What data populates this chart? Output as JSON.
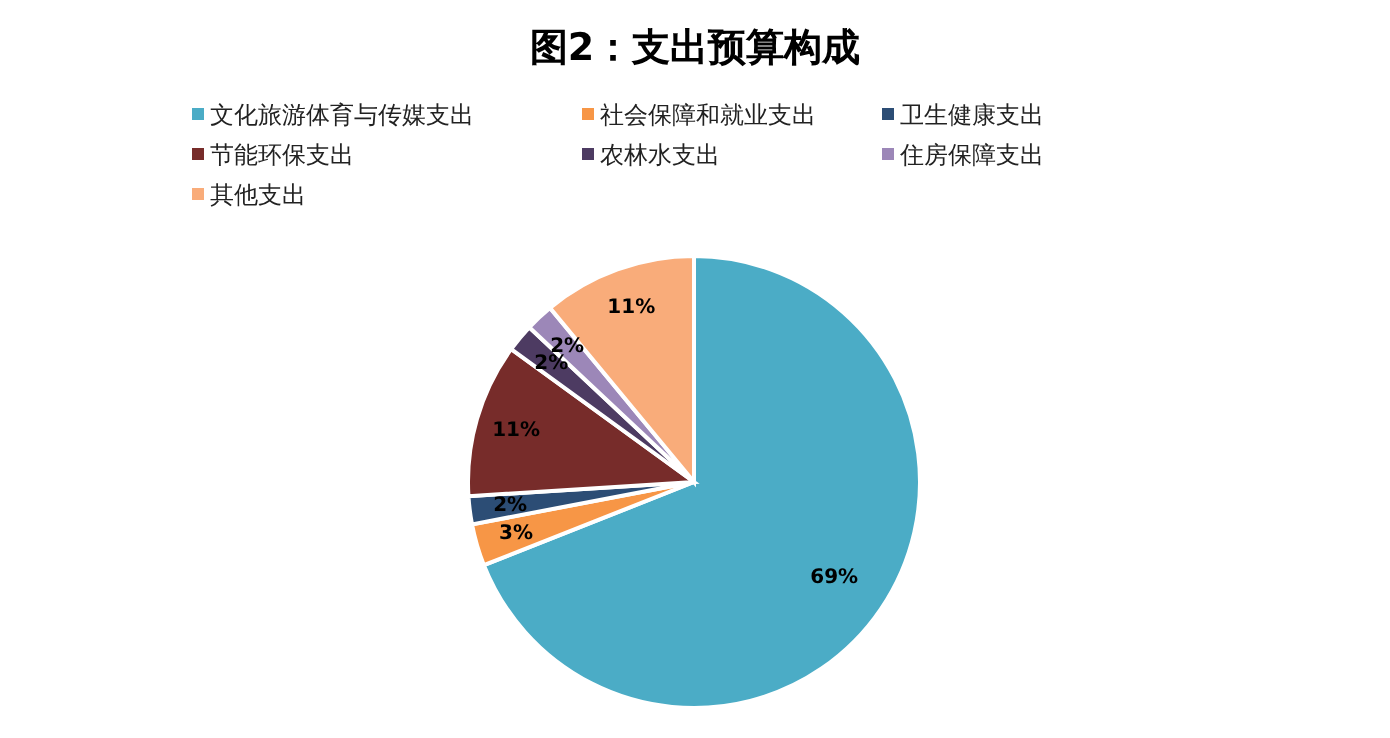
{
  "chart_data": {
    "type": "pie",
    "title": "图2：支出预算构成",
    "categories": [
      "文化旅游体育与传媒支出",
      "社会保障和就业支出",
      "卫生健康支出",
      "节能环保支出",
      "农林水支出",
      "住房保障支出",
      "其他支出"
    ],
    "values": [
      69,
      3,
      2,
      11,
      2,
      2,
      11
    ],
    "colors": [
      "#4bacc6",
      "#f79646",
      "#2c4d75",
      "#772c2a",
      "#4d3b62",
      "#9c87b8",
      "#f9ac7a"
    ],
    "value_labels": [
      "69%",
      "3%",
      "2%",
      "11%",
      "2%",
      "2%",
      "11%"
    ],
    "legend": "top"
  }
}
